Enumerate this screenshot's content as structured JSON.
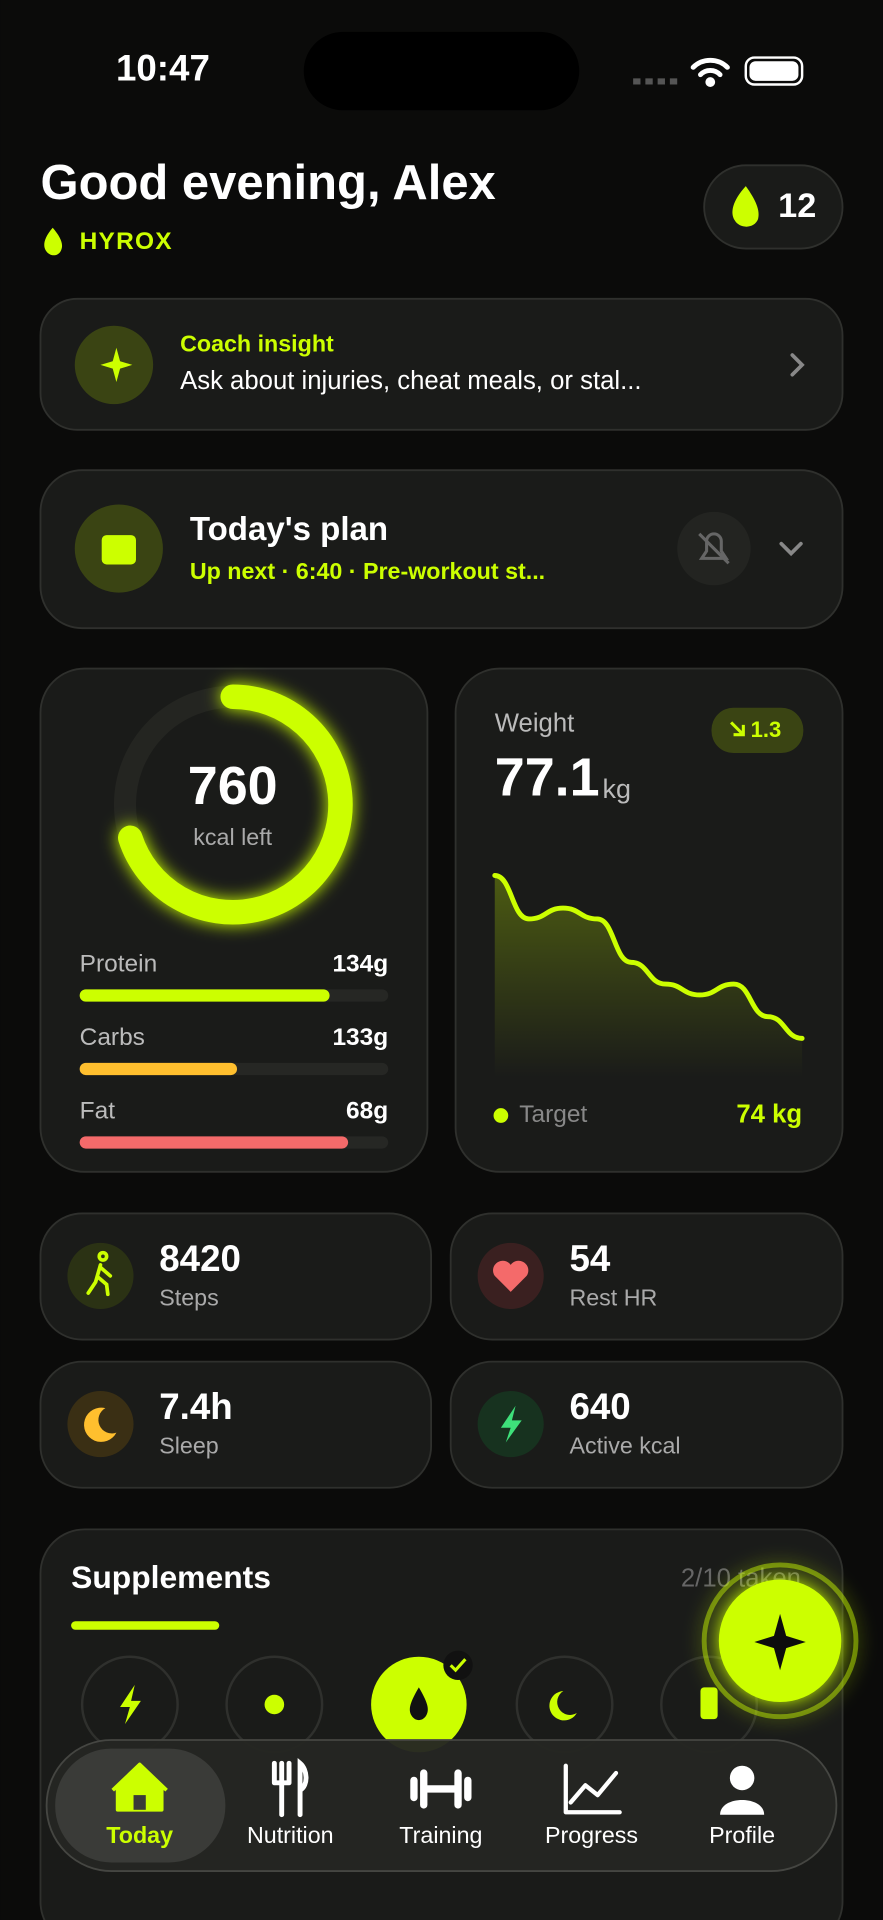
{
  "status_bar": {
    "time": "10:47"
  },
  "header": {
    "greeting": "Good evening, Alex",
    "program": "HYROX",
    "streak": 12
  },
  "coach_insight": {
    "title": "Coach insight",
    "text": "Ask about injuries, cheat meals, or stal..."
  },
  "todays_plan": {
    "title": "Today's plan",
    "subtitle": "Up next · 6:40 · Pre-workout st..."
  },
  "calories": {
    "value": 760,
    "label": "kcal left",
    "ring_progress": 0.7,
    "macros": [
      {
        "name": "Protein",
        "amount": "134g",
        "progress": 0.81,
        "color": "#ccff00"
      },
      {
        "name": "Carbs",
        "amount": "133g",
        "progress": 0.51,
        "color": "#ffbf2e"
      },
      {
        "name": "Fat",
        "amount": "68g",
        "progress": 0.87,
        "color": "#f46a6a"
      }
    ]
  },
  "weight": {
    "title": "Weight",
    "value": 77.1,
    "unit": "kg",
    "change": 1.3,
    "trend": [
      78.6,
      78.2,
      78.3,
      78.2,
      77.8,
      77.6,
      77.5,
      77.6,
      77.3,
      77.1
    ],
    "target_label": "Target",
    "target": "74 kg"
  },
  "stats": [
    {
      "value": "8420",
      "label": "Steps"
    },
    {
      "value": "54",
      "label": "Rest HR"
    },
    {
      "value": "7.4h",
      "label": "Sleep"
    },
    {
      "value": "640",
      "label": "Active kcal"
    }
  ],
  "supplements": {
    "title": "Supplements",
    "count": "2/10 taken",
    "progress": 0.2
  },
  "nav": [
    {
      "label": "Today"
    },
    {
      "label": "Nutrition"
    },
    {
      "label": "Training"
    },
    {
      "label": "Progress"
    },
    {
      "label": "Profile"
    }
  ]
}
